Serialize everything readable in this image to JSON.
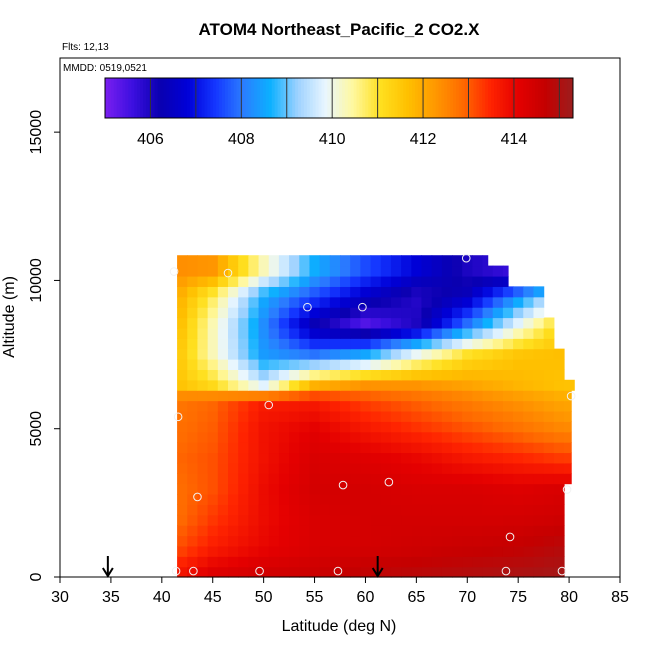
{
  "chart_data": {
    "type": "heatmap",
    "title": "ATOM4 Northeast_Pacific_2 CO2.X",
    "flights_label": "Flts: 12,13",
    "dates_label": "MMDD: 0519,0521",
    "xlabel": "Latitude (deg N)",
    "ylabel": "Altitude (m)",
    "xlim": [
      30,
      85
    ],
    "ylim": [
      0,
      17500
    ],
    "x_ticks": [
      30,
      35,
      40,
      45,
      50,
      55,
      60,
      65,
      70,
      75,
      80,
      85
    ],
    "y_ticks": [
      0,
      5000,
      10000,
      15000
    ],
    "x_tick_labels": [
      "30",
      "35",
      "40",
      "45",
      "50",
      "55",
      "60",
      "65",
      "70",
      "75",
      "80",
      "85"
    ],
    "y_tick_labels": [
      "0",
      "5000",
      "10000",
      "15000"
    ],
    "colorbar": {
      "min": 405,
      "max": 415.3,
      "tick_values": [
        406,
        408,
        410,
        412,
        414
      ],
      "tick_labels": [
        "406",
        "408",
        "410",
        "412",
        "414"
      ],
      "colors": [
        "#7a1ff0",
        "#3c0fe0",
        "#0a00b0",
        "#0000d8",
        "#1436ff",
        "#2b7cff",
        "#0cb0ff",
        "#9ed2ff",
        "#e8f6ff",
        "#fff8a0",
        "#ffe020",
        "#ffc000",
        "#ff9800",
        "#ff6a00",
        "#ff2400",
        "#e40000",
        "#c40000",
        "#9c1e1e"
      ]
    },
    "markers": [
      {
        "x": 34.7,
        "y": 0
      },
      {
        "x": 61.2,
        "y": 0
      }
    ],
    "observation_points": [
      {
        "x": 41.4,
        "y": 200
      },
      {
        "x": 43.1,
        "y": 200
      },
      {
        "x": 49.6,
        "y": 200
      },
      {
        "x": 57.3,
        "y": 200
      },
      {
        "x": 73.8,
        "y": 200
      },
      {
        "x": 79.3,
        "y": 200
      },
      {
        "x": 74.2,
        "y": 1350
      },
      {
        "x": 43.5,
        "y": 2700
      },
      {
        "x": 57.8,
        "y": 3100
      },
      {
        "x": 62.3,
        "y": 3200
      },
      {
        "x": 79.8,
        "y": 2950
      },
      {
        "x": 41.6,
        "y": 5400
      },
      {
        "x": 50.5,
        "y": 5800
      },
      {
        "x": 80.2,
        "y": 6100
      },
      {
        "x": 54.3,
        "y": 9100
      },
      {
        "x": 59.7,
        "y": 9100
      },
      {
        "x": 41.2,
        "y": 10300
      },
      {
        "x": 46.5,
        "y": 10250
      },
      {
        "x": 69.9,
        "y": 10750
      }
    ],
    "grid_x": [
      41.5,
      45,
      50,
      55,
      60,
      65,
      70,
      75,
      79.5
    ],
    "grid_y": [
      0,
      1000,
      2000,
      3000,
      4000,
      5000,
      6000,
      6500,
      7500,
      8500,
      9500,
      10300
    ],
    "grid_values": [
      [
        413.8,
        414.3,
        414.5,
        414.6,
        414.8,
        414.9,
        415.0,
        415.1,
        415.2
      ],
      [
        413.1,
        413.6,
        414.0,
        414.3,
        414.4,
        414.5,
        414.6,
        414.7,
        414.9
      ],
      [
        412.8,
        413.3,
        413.9,
        414.3,
        414.4,
        414.4,
        414.4,
        414.4,
        414.5
      ],
      [
        412.8,
        413.1,
        413.9,
        414.4,
        414.4,
        414.3,
        414.3,
        414.2,
        414.3
      ],
      [
        412.9,
        413.1,
        413.8,
        414.3,
        414.2,
        414.0,
        413.7,
        413.5,
        413.3
      ],
      [
        412.8,
        413.0,
        413.8,
        414.1,
        413.7,
        413.4,
        413.1,
        412.8,
        412.5
      ],
      [
        412.7,
        412.9,
        413.6,
        413.6,
        413.2,
        412.9,
        412.6,
        412.3,
        412.0
      ],
      [
        411.6,
        411.1,
        409.6,
        411.8,
        412.3,
        412.3,
        412.1,
        411.8,
        411.6
      ],
      [
        411.6,
        410.3,
        408.4,
        408.0,
        408.6,
        410.0,
        411.1,
        411.6,
        411.7
      ],
      [
        411.8,
        410.3,
        408.2,
        406.2,
        405.3,
        406.0,
        408.0,
        409.9,
        411.4
      ],
      [
        412.0,
        410.8,
        408.6,
        407.6,
        406.6,
        405.9,
        406.4,
        408.2,
        409.9
      ],
      [
        412.4,
        412.3,
        410.3,
        408.6,
        407.6,
        406.8,
        406.0,
        405.6,
        405.6
      ]
    ],
    "row_extent": [
      [
        41.5,
        79.5
      ],
      [
        41.5,
        79.5
      ],
      [
        41.5,
        79.5
      ],
      [
        41.5,
        80.2
      ],
      [
        41.5,
        80.2
      ],
      [
        41.5,
        80.2
      ],
      [
        41.5,
        80.5
      ],
      [
        41.5,
        79.5
      ],
      [
        41.5,
        78.5
      ],
      [
        41.5,
        77.5
      ],
      [
        41.5,
        74.0
      ],
      [
        41.5,
        72.0
      ]
    ],
    "grid": false,
    "legend_position": "top-inside"
  }
}
